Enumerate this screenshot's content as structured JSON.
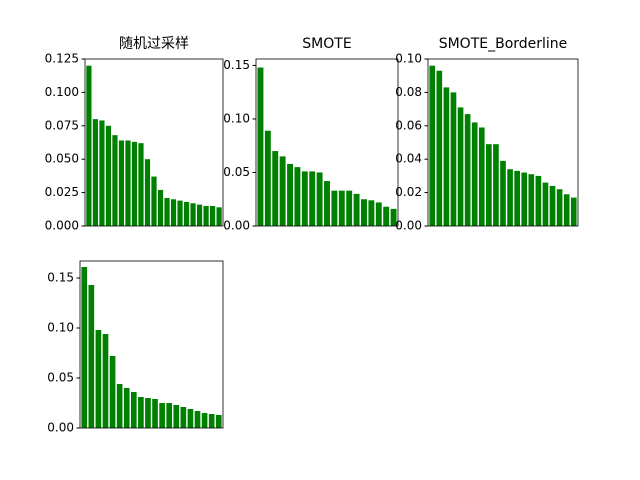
{
  "chart_data": [
    {
      "type": "bar",
      "title": "随机过采样",
      "color": "#008000",
      "categories": [
        null,
        null,
        null,
        null,
        null,
        null,
        null,
        null,
        null,
        null,
        null,
        null,
        null,
        null,
        null,
        null,
        null,
        null,
        null,
        null,
        null
      ],
      "values": [
        0.12,
        0.08,
        0.079,
        0.075,
        0.068,
        0.064,
        0.064,
        0.063,
        0.062,
        0.05,
        0.037,
        0.027,
        0.021,
        0.02,
        0.019,
        0.018,
        0.017,
        0.016,
        0.015,
        0.015,
        0.014
      ],
      "ylim": [
        0,
        0.125
      ],
      "yticks": [
        {
          "value": 0,
          "label": "0.000"
        },
        {
          "value": 0.025,
          "label": "0.025"
        },
        {
          "value": 0.05,
          "label": "0.050"
        },
        {
          "value": 0.075,
          "label": "0.075"
        },
        {
          "value": 0.1,
          "label": "0.100"
        },
        {
          "value": 0.125,
          "label": "0.125"
        }
      ]
    },
    {
      "type": "bar",
      "title": "SMOTE",
      "color": "#008000",
      "categories": [
        null,
        null,
        null,
        null,
        null,
        null,
        null,
        null,
        null,
        null,
        null,
        null,
        null,
        null,
        null,
        null,
        null,
        null,
        null
      ],
      "values": [
        0.148,
        0.089,
        0.07,
        0.065,
        0.058,
        0.055,
        0.051,
        0.051,
        0.05,
        0.042,
        0.033,
        0.033,
        0.033,
        0.03,
        0.025,
        0.024,
        0.022,
        0.018,
        0.016
      ],
      "ylim": [
        0,
        0.156
      ],
      "yticks": [
        {
          "value": 0,
          "label": "0.00"
        },
        {
          "value": 0.05,
          "label": "0.05"
        },
        {
          "value": 0.1,
          "label": "0.10"
        },
        {
          "value": 0.15,
          "label": "0.15"
        }
      ]
    },
    {
      "type": "bar",
      "title": "SMOTE_Borderline",
      "color": "#008000",
      "categories": [
        null,
        null,
        null,
        null,
        null,
        null,
        null,
        null,
        null,
        null,
        null,
        null,
        null,
        null,
        null,
        null,
        null,
        null,
        null,
        null,
        null
      ],
      "values": [
        0.096,
        0.093,
        0.083,
        0.08,
        0.071,
        0.067,
        0.062,
        0.059,
        0.049,
        0.049,
        0.039,
        0.034,
        0.033,
        0.032,
        0.031,
        0.03,
        0.026,
        0.024,
        0.022,
        0.019,
        0.017
      ],
      "ylim": [
        0,
        0.1
      ],
      "yticks": [
        {
          "value": 0,
          "label": "0.00"
        },
        {
          "value": 0.02,
          "label": "0.02"
        },
        {
          "value": 0.04,
          "label": "0.04"
        },
        {
          "value": 0.06,
          "label": "0.06"
        },
        {
          "value": 0.08,
          "label": "0.08"
        },
        {
          "value": 0.1,
          "label": "0.10"
        }
      ]
    },
    {
      "type": "bar",
      "color": "#008000",
      "categories": [
        null,
        null,
        null,
        null,
        null,
        null,
        null,
        null,
        null,
        null,
        null,
        null,
        null,
        null,
        null,
        null,
        null,
        null,
        null,
        null
      ],
      "values": [
        0.161,
        0.143,
        0.098,
        0.094,
        0.072,
        0.044,
        0.04,
        0.036,
        0.031,
        0.03,
        0.029,
        0.025,
        0.025,
        0.023,
        0.021,
        0.019,
        0.017,
        0.015,
        0.014,
        0.013
      ],
      "ylim": [
        0,
        0.167
      ],
      "yticks": [
        {
          "value": 0,
          "label": "0.00"
        },
        {
          "value": 0.05,
          "label": "0.05"
        },
        {
          "value": 0.1,
          "label": "0.10"
        },
        {
          "value": 0.15,
          "label": "0.15"
        }
      ]
    }
  ]
}
